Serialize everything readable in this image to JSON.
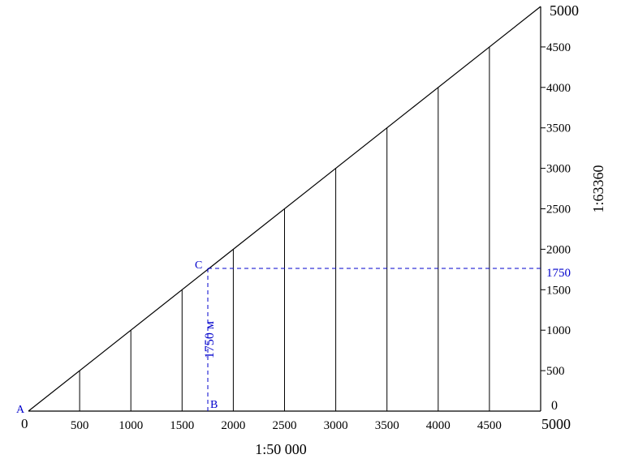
{
  "labels": {
    "point_a": "A",
    "point_b": "B",
    "point_c": "C",
    "origin": "0",
    "bottom_end": "5000",
    "right_top": "5000",
    "right_zero": "0",
    "bottom_scale": "1:50 000",
    "right_scale": "1:63360",
    "marker_value": "1750",
    "vertical_distance": "1750 м"
  },
  "bottom_ticks": [
    "500",
    "1000",
    "1500",
    "2000",
    "2500",
    "3000",
    "3500",
    "4000",
    "4500"
  ],
  "right_ticks": [
    "500",
    "1000",
    "1500",
    "2000",
    "2500",
    "3000",
    "3500",
    "4000",
    "4500"
  ],
  "tick_values": [
    500,
    1000,
    1500,
    2000,
    2500,
    3000,
    3500,
    4000,
    4500
  ],
  "max_value": 5000,
  "marker_value_num": 1750,
  "colors": {
    "line": "#000000",
    "highlight": "#0000cc"
  }
}
